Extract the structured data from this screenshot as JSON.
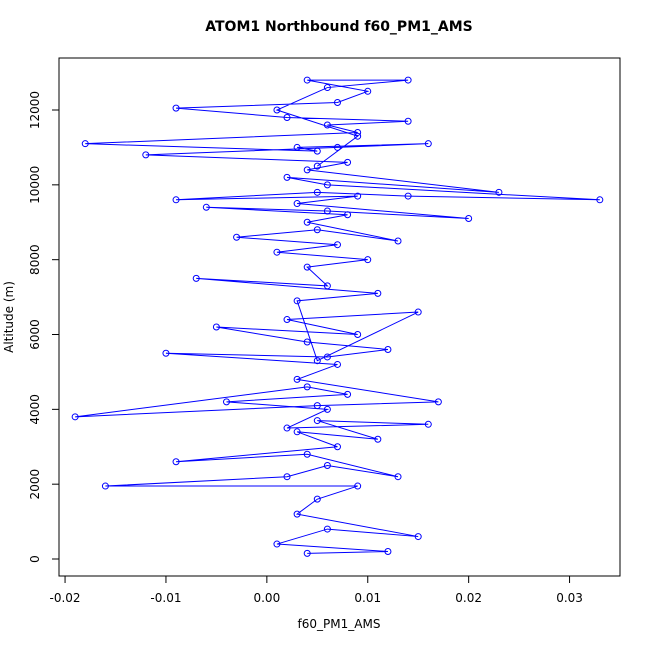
{
  "chart_data": {
    "type": "line",
    "title": "ATOM1 Northbound f60_PM1_AMS",
    "xlabel": "f60_PM1_AMS",
    "ylabel": "Altitude (m)",
    "color": "#0000ff",
    "markers": true,
    "x": [
      0.004,
      0.012,
      0.001,
      0.006,
      0.015,
      0.003,
      0.005,
      0.009,
      -0.016,
      0.002,
      0.006,
      0.013,
      0.004,
      -0.009,
      0.007,
      0.003,
      0.011,
      0.005,
      0.016,
      0.002,
      0.006,
      -0.004,
      0.008,
      0.004,
      -0.019,
      0.005,
      0.017,
      0.003,
      0.007,
      -0.01,
      0.006,
      0.012,
      0.004,
      -0.005,
      0.009,
      0.002,
      0.015,
      0.005,
      0.003,
      0.011,
      -0.007,
      0.006,
      0.004,
      0.01,
      0.001,
      0.007,
      -0.003,
      0.005,
      0.013,
      0.004,
      0.008,
      -0.006,
      0.006,
      0.02,
      0.003,
      0.009,
      -0.009,
      0.005,
      0.014,
      0.033,
      0.006,
      0.002,
      0.023,
      0.004,
      0.008,
      -0.012,
      0.007,
      0.016,
      0.003,
      0.005,
      -0.018,
      0.009,
      0.006,
      0.014,
      0.002,
      -0.009,
      0.007,
      0.01,
      0.004,
      0.014,
      0.006,
      0.001,
      0.009,
      0.005
    ],
    "values": [
      150,
      200,
      400,
      800,
      600,
      1200,
      1600,
      1950,
      1950,
      2200,
      2500,
      2200,
      2800,
      2600,
      3000,
      3400,
      3200,
      3700,
      3600,
      3500,
      4000,
      4200,
      4400,
      4600,
      3800,
      4100,
      4200,
      4800,
      5200,
      5500,
      5400,
      5600,
      5800,
      6200,
      6000,
      6400,
      6600,
      5300,
      6900,
      7100,
      7500,
      7300,
      7800,
      8000,
      8200,
      8400,
      8600,
      8800,
      8500,
      9000,
      9200,
      9400,
      9300,
      9100,
      9500,
      9700,
      9600,
      9800,
      9700,
      9600,
      10000,
      10200,
      9800,
      10400,
      10600,
      10800,
      11000,
      11100,
      11000,
      10900,
      11100,
      11400,
      11600,
      11700,
      11800,
      12050,
      12200,
      12500,
      12800,
      12800,
      12600,
      12000,
      11300,
      10500
    ],
    "xlim": [
      -0.0206,
      0.035
    ],
    "ylim": [
      -454,
      13390
    ],
    "xticks": [
      -0.02,
      -0.01,
      {
        "value": 0,
        "label": "0.00"
      },
      0.01,
      0.02,
      0.03
    ],
    "yticks": [
      0,
      2000,
      4000,
      6000,
      8000,
      10000,
      12000
    ]
  }
}
